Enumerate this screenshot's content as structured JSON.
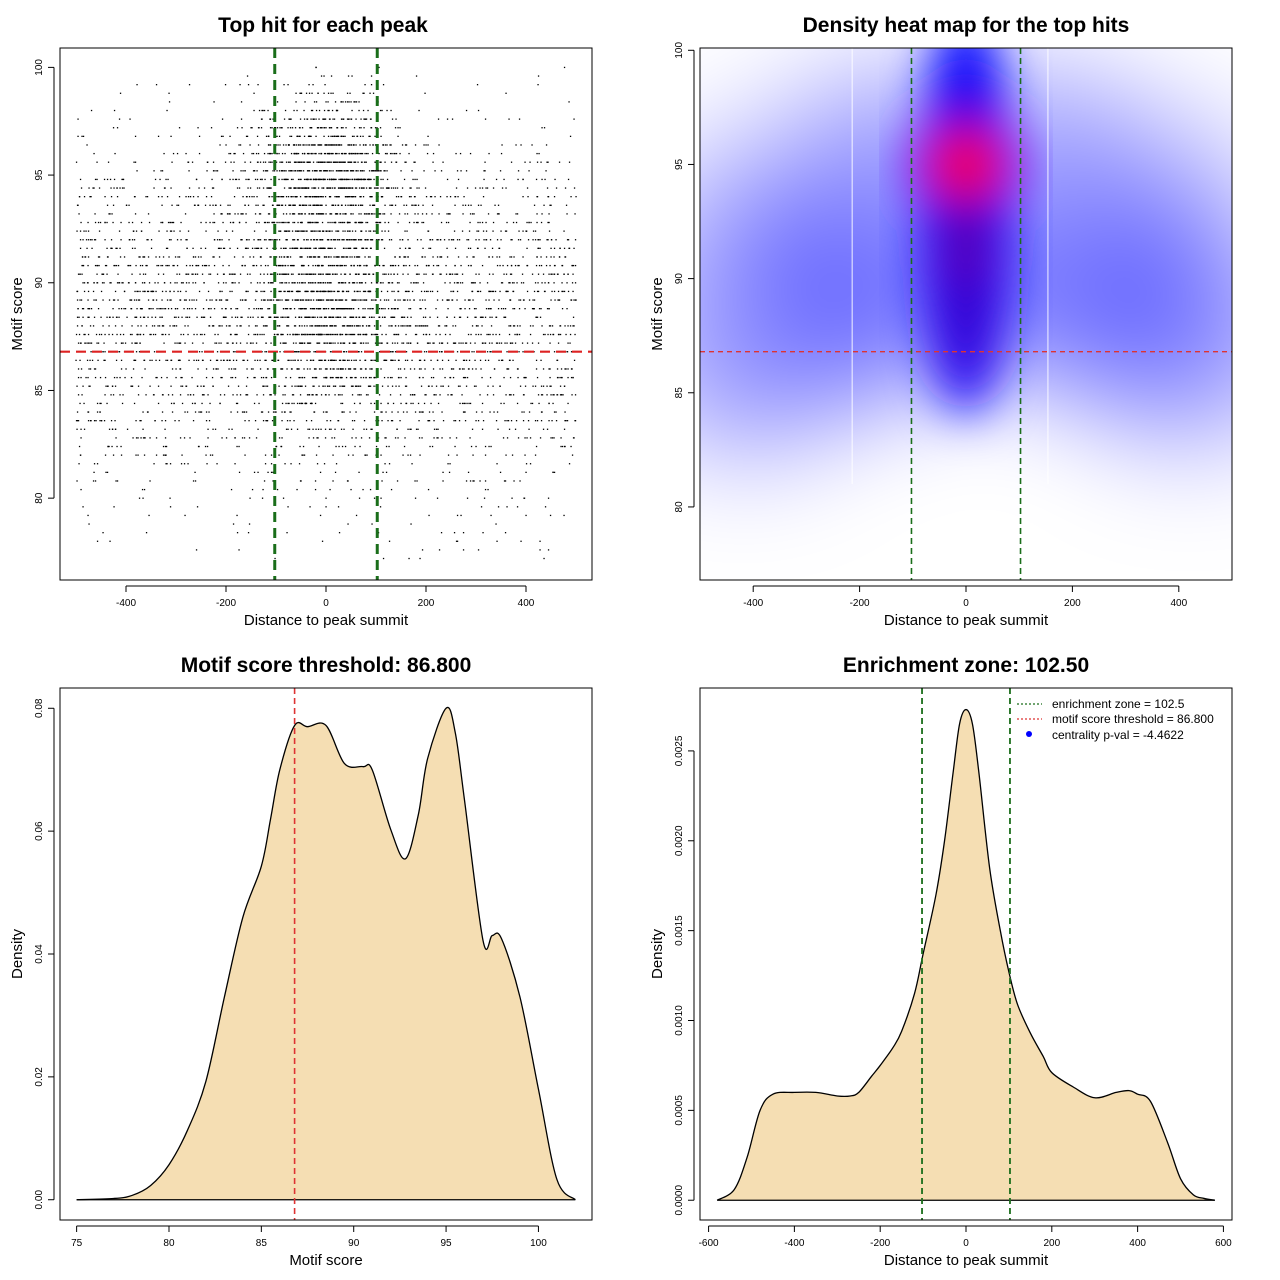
{
  "chart_data": [
    {
      "type": "scatter",
      "title": "Top hit for each peak",
      "xlabel": "Distance to peak summit",
      "ylabel": "Motif score",
      "xlim": [
        -532,
        532
      ],
      "ylim": [
        76.2,
        100.9
      ],
      "xticks": [
        -400,
        -200,
        0,
        200,
        400
      ],
      "yticks": [
        80,
        85,
        90,
        95,
        100
      ],
      "colors": {
        "points": "#000000",
        "threshold_line": "#dd2222",
        "zone_lines": "#1a6e1a"
      },
      "threshold": 86.8,
      "enrichment_zone": [
        -102.5,
        102.5
      ],
      "point_cloud": {
        "x_range": [
          -500,
          500
        ],
        "y_range": [
          77,
          100
        ],
        "dense_center": 0,
        "dense_score": 95,
        "note_marker": "small dots"
      }
    },
    {
      "type": "heatmap",
      "title": "Density heat map for the top hits",
      "xlabel": "Distance to peak summit",
      "ylabel": "Motif score",
      "xlim": [
        -500,
        500
      ],
      "ylim": [
        76.8,
        100.1
      ],
      "xticks": [
        -400,
        -200,
        0,
        200,
        400
      ],
      "yticks": [
        80,
        85,
        90,
        95,
        100
      ],
      "colors": {
        "low": "#ffffff",
        "mid": "#0000ff",
        "high": "#ff0000",
        "threshold_line": "#dd3333",
        "zone_lines": "#1a6e1a"
      },
      "threshold": 86.8,
      "enrichment_zone": [
        -102.5,
        102.5
      ],
      "hotspot": {
        "x": 0,
        "y": 95
      }
    },
    {
      "type": "area",
      "title": "Motif score threshold: 86.800",
      "xlabel": "Motif score",
      "ylabel": "Density",
      "xlim": [
        74.1,
        102.9
      ],
      "ylim": [
        -0.0033,
        0.0833
      ],
      "xticks": [
        75,
        80,
        85,
        90,
        95,
        100
      ],
      "yticks": [
        0.0,
        0.02,
        0.04,
        0.06,
        0.08
      ],
      "ytick_labels": [
        "0.00",
        "0.02",
        "0.04",
        "0.06",
        "0.08"
      ],
      "colors": {
        "fill": "#f5deb3",
        "line": "#000000",
        "threshold_line": "#dd3333"
      },
      "threshold": 86.8,
      "x": [
        75,
        77,
        78,
        79,
        80,
        81,
        82,
        83,
        84,
        85,
        85.5,
        86,
        86.8,
        87.5,
        88.5,
        89.5,
        90.5,
        91,
        92,
        92.8,
        93.5,
        94,
        95,
        95.5,
        96,
        97,
        97.5,
        98,
        99,
        100,
        101,
        102
      ],
      "values": [
        0,
        0.0002,
        0.0007,
        0.0023,
        0.0057,
        0.0113,
        0.0193,
        0.033,
        0.046,
        0.0543,
        0.062,
        0.07,
        0.0772,
        0.077,
        0.0772,
        0.071,
        0.0705,
        0.07,
        0.0603,
        0.0555,
        0.0627,
        0.0718,
        0.08,
        0.076,
        0.065,
        0.0422,
        0.043,
        0.0425,
        0.033,
        0.018,
        0.0033,
        0
      ]
    },
    {
      "type": "area",
      "title": "Enrichment zone: 102.50",
      "xlabel": "Distance to peak summit",
      "ylabel": "Density",
      "xlim": [
        -620,
        620
      ],
      "ylim": [
        -0.00011,
        0.00285
      ],
      "xticks": [
        -600,
        -400,
        -200,
        0,
        200,
        400,
        600
      ],
      "yticks": [
        0.0,
        0.0005,
        0.001,
        0.0015,
        0.002,
        0.0025
      ],
      "ytick_labels": [
        "0.0000",
        "0.0005",
        "0.0010",
        "0.0015",
        "0.0020",
        "0.0025"
      ],
      "colors": {
        "fill": "#f5deb3",
        "line": "#000000",
        "zone_lines": "#1a6e1a"
      },
      "enrichment_zone": [
        -102.5,
        102.5
      ],
      "x": [
        -580,
        -540,
        -510,
        -480,
        -450,
        -400,
        -350,
        -300,
        -270,
        -250,
        -220,
        -200,
        -170,
        -150,
        -120,
        -100,
        -70,
        -50,
        -30,
        -15,
        0,
        15,
        30,
        55,
        80,
        100,
        120,
        150,
        180,
        200,
        250,
        300,
        350,
        380,
        400,
        430,
        470,
        500,
        530,
        555,
        580
      ],
      "values": [
        0,
        6e-05,
        0.00024,
        0.0005,
        0.00059,
        0.0006,
        0.0006,
        0.00058,
        0.00058,
        0.0006,
        0.00069,
        0.00075,
        0.00085,
        0.00094,
        0.00115,
        0.00137,
        0.0017,
        0.002,
        0.00238,
        0.00265,
        0.00273,
        0.00265,
        0.00238,
        0.00185,
        0.0015,
        0.00127,
        0.00109,
        0.00093,
        0.0008,
        0.00071,
        0.00063,
        0.00057,
        0.0006,
        0.00061,
        0.00059,
        0.00055,
        0.00032,
        0.00012,
        3e-05,
        1e-05,
        0
      ],
      "legend": {
        "position": "top-right",
        "entries": [
          {
            "label": "enrichment zone = 102.5",
            "symbol": "dotted-line",
            "color": "#1a6e1a"
          },
          {
            "label": "motif score threshold = 86.800",
            "symbol": "dotted-line",
            "color": "#dd3333"
          },
          {
            "label": "centrality p-val = -4.4622",
            "symbol": "point",
            "color": "#0000ff"
          }
        ]
      }
    }
  ]
}
